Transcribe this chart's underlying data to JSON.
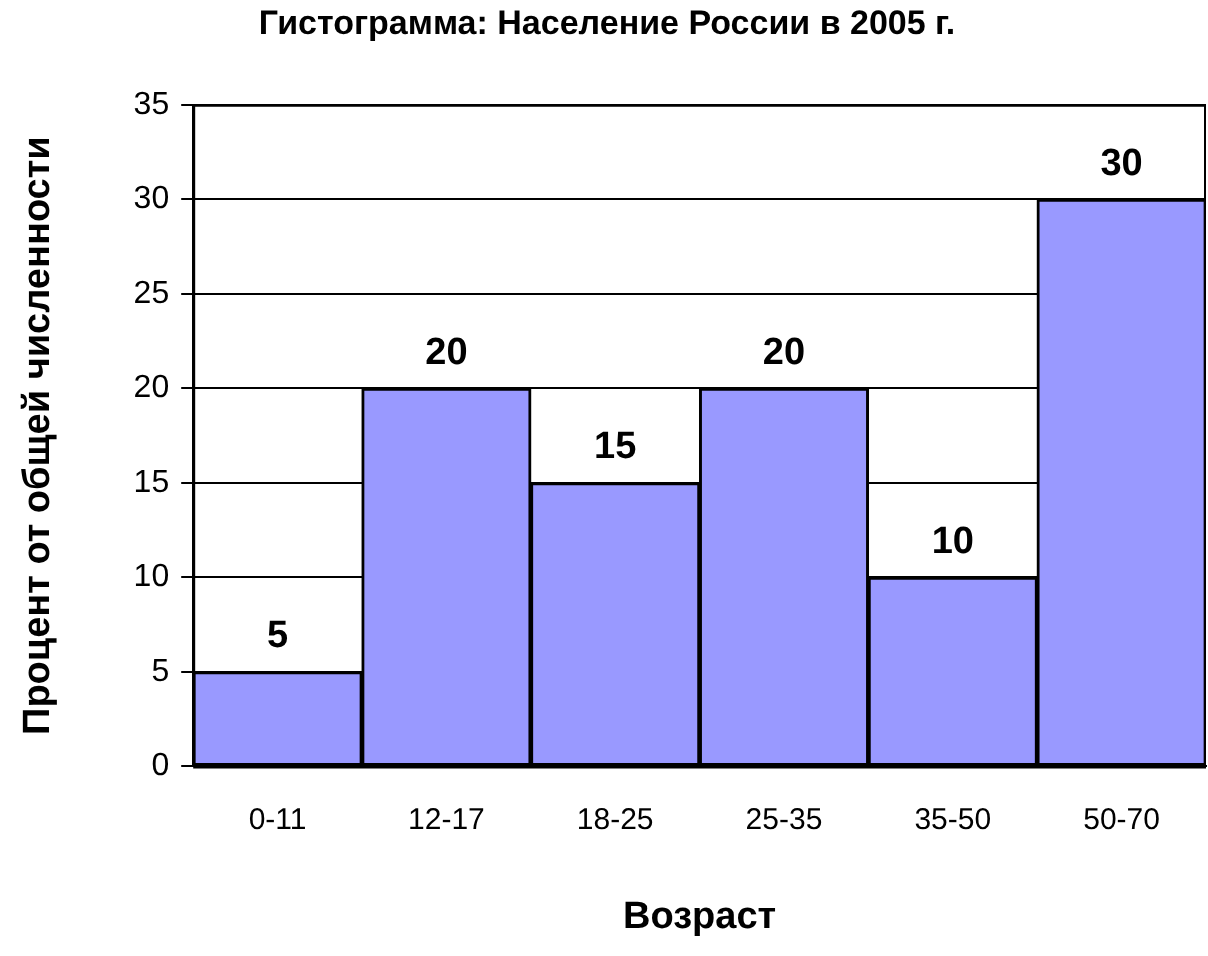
{
  "chart_data": {
    "type": "bar",
    "title": "Гистограмма: Население России в 2005 г.",
    "xlabel": "Возраст",
    "ylabel": "Процент от общей численности",
    "categories": [
      "0-11",
      "12-17",
      "18-25",
      "25-35",
      "35-50",
      "50-70"
    ],
    "values": [
      5,
      20,
      15,
      20,
      10,
      30
    ],
    "color": "#9999ff",
    "ylim": [
      0,
      35
    ],
    "yticks": [
      0,
      5,
      10,
      15,
      20,
      25,
      30,
      35
    ],
    "grid": "y",
    "data_labels": true
  }
}
